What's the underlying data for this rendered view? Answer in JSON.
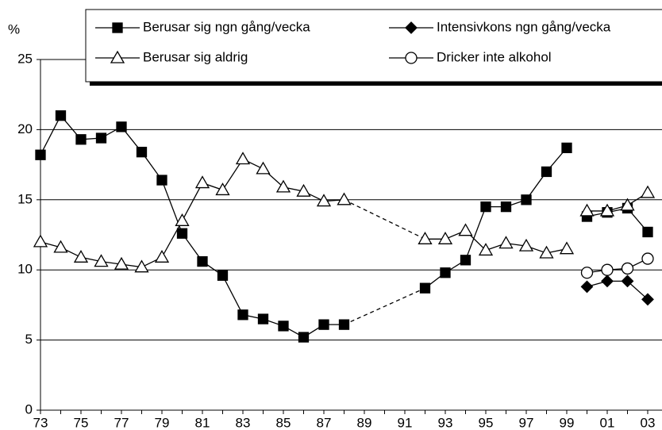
{
  "chart_data": {
    "type": "line",
    "y_unit_label": "%",
    "categories": [
      "73",
      null,
      "75",
      null,
      "77",
      null,
      "79",
      null,
      "81",
      null,
      "83",
      null,
      "85",
      null,
      "87",
      null,
      "89",
      null,
      "91",
      null,
      "93",
      null,
      "95",
      null,
      "97",
      null,
      "99",
      null,
      "01",
      null,
      "03"
    ],
    "break_after": "99",
    "dashed_gaps": true,
    "grid": true,
    "ylim": [
      0,
      25
    ],
    "yticks": [
      0,
      5,
      10,
      15,
      20,
      25
    ],
    "series": [
      {
        "name": "Berusar sig ngn gång/vecka",
        "color": "#000000",
        "marker": "square",
        "values": [
          18.2,
          21.0,
          19.3,
          19.4,
          20.2,
          18.4,
          16.4,
          12.6,
          10.6,
          9.6,
          6.8,
          6.5,
          6.0,
          5.2,
          6.1,
          6.1,
          null,
          null,
          null,
          8.7,
          9.8,
          10.7,
          14.5,
          14.5,
          15.0,
          17.0,
          18.7,
          13.8,
          14.1,
          14.4,
          12.7
        ]
      },
      {
        "name": "Intensivkons ngn gång/vecka",
        "color": "#000000",
        "marker": "diamond",
        "values": [
          null,
          null,
          null,
          null,
          null,
          null,
          null,
          null,
          null,
          null,
          null,
          null,
          null,
          null,
          null,
          null,
          null,
          null,
          null,
          null,
          null,
          null,
          null,
          null,
          null,
          null,
          null,
          8.8,
          9.2,
          9.2,
          7.9
        ]
      },
      {
        "name": "Berusar sig aldrig",
        "color": "#000000",
        "marker": "triangle",
        "values": [
          12.0,
          11.6,
          10.9,
          10.6,
          10.4,
          10.2,
          10.9,
          13.5,
          16.2,
          15.7,
          17.9,
          17.2,
          15.9,
          15.6,
          14.9,
          15.0,
          null,
          null,
          null,
          12.2,
          12.2,
          12.8,
          11.4,
          11.9,
          11.7,
          11.2,
          11.5,
          14.2,
          14.2,
          14.6,
          15.5
        ]
      },
      {
        "name": "Dricker inte alkohol",
        "color": "#000000",
        "marker": "circle",
        "values": [
          null,
          null,
          null,
          null,
          null,
          null,
          null,
          null,
          null,
          null,
          null,
          null,
          null,
          null,
          null,
          null,
          null,
          null,
          null,
          null,
          null,
          null,
          null,
          null,
          null,
          null,
          null,
          9.8,
          10.0,
          10.1,
          10.8
        ]
      }
    ]
  }
}
